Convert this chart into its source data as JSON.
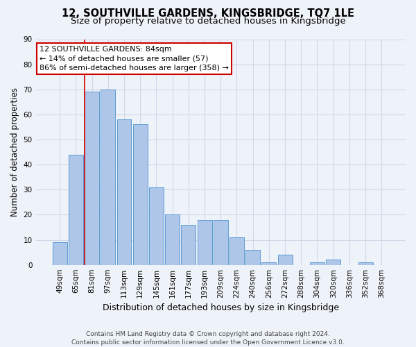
{
  "title": "12, SOUTHVILLE GARDENS, KINGSBRIDGE, TQ7 1LE",
  "subtitle": "Size of property relative to detached houses in Kingsbridge",
  "xlabel": "Distribution of detached houses by size in Kingsbridge",
  "ylabel": "Number of detached properties",
  "categories": [
    "49sqm",
    "65sqm",
    "81sqm",
    "97sqm",
    "113sqm",
    "129sqm",
    "145sqm",
    "161sqm",
    "177sqm",
    "193sqm",
    "209sqm",
    "224sqm",
    "240sqm",
    "256sqm",
    "272sqm",
    "288sqm",
    "304sqm",
    "320sqm",
    "336sqm",
    "352sqm",
    "368sqm"
  ],
  "values": [
    9,
    44,
    69,
    70,
    58,
    56,
    31,
    20,
    16,
    18,
    18,
    11,
    6,
    1,
    4,
    0,
    1,
    2,
    0,
    1,
    0
  ],
  "bar_color": "#aec6e8",
  "bar_edge_color": "#5b9bd5",
  "grid_color": "#d0d8e8",
  "background_color": "#eef2f9",
  "vline_color": "#cc0000",
  "vline_x_idx": 2,
  "annotation_line1": "12 SOUTHVILLE GARDENS: 84sqm",
  "annotation_line2": "← 14% of detached houses are smaller (57)",
  "annotation_line3": "86% of semi-detached houses are larger (358) →",
  "annotation_box_color": "#ffffff",
  "annotation_box_edge": "#cc0000",
  "ylim": [
    0,
    90
  ],
  "yticks": [
    0,
    10,
    20,
    30,
    40,
    50,
    60,
    70,
    80,
    90
  ],
  "footer": "Contains HM Land Registry data © Crown copyright and database right 2024.\nContains public sector information licensed under the Open Government Licence v3.0.",
  "title_fontsize": 10.5,
  "subtitle_fontsize": 9.5,
  "xlabel_fontsize": 9,
  "ylabel_fontsize": 8.5,
  "tick_fontsize": 7.5,
  "annot_fontsize": 8,
  "footer_fontsize": 6.5
}
